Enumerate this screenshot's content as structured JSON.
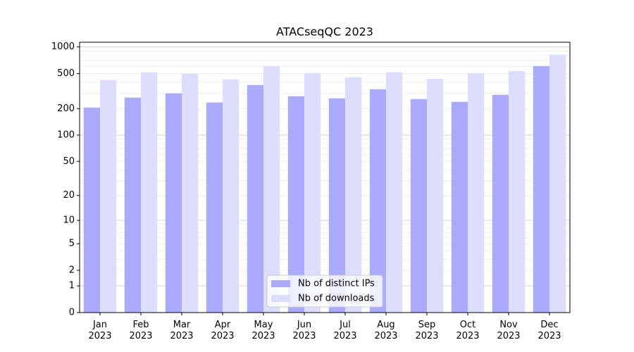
{
  "chart_data": {
    "type": "bar",
    "title": "ATACseqQC 2023",
    "categories": [
      "Jan 2023",
      "Feb 2023",
      "Mar 2023",
      "Apr 2023",
      "May 2023",
      "Jun 2023",
      "Jul 2023",
      "Aug 2023",
      "Sep 2023",
      "Oct 2023",
      "Nov 2023",
      "Dec 2023"
    ],
    "series": [
      {
        "name": "Nb of distinct IPs",
        "color": "#aaaaff",
        "values": [
          206,
          267,
          298,
          235,
          371,
          277,
          262,
          332,
          257,
          239,
          287,
          608
        ]
      },
      {
        "name": "Nb of downloads",
        "color": "#ddddff",
        "values": [
          422,
          516,
          497,
          430,
          608,
          506,
          454,
          516,
          437,
          506,
          535,
          816
        ]
      }
    ],
    "yscale": "log1p",
    "ylim": [
      0,
      1130
    ],
    "yticks": [
      0,
      1,
      2,
      5,
      10,
      20,
      50,
      100,
      200,
      500,
      1000
    ],
    "grid": true,
    "legend": "lower center"
  }
}
